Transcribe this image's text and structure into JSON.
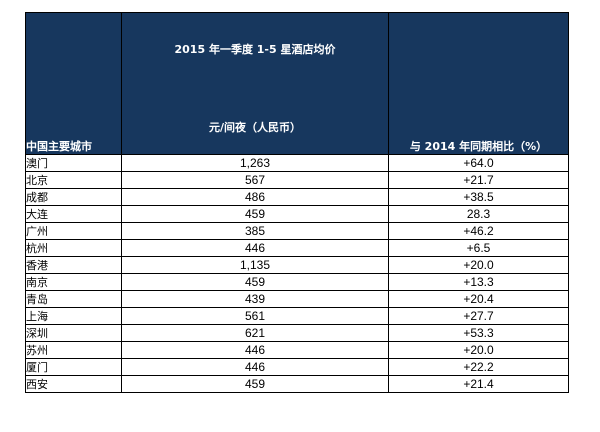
{
  "table": {
    "header": {
      "city": "中国主要城市",
      "title": "2015 年一季度 1-5 星酒店均价",
      "unit": "元/间夜（人民币）",
      "change": "与 2014 年同期相比（%）"
    },
    "rows": [
      {
        "city": "澳门",
        "price": "1,263",
        "change": "+64.0"
      },
      {
        "city": "北京",
        "price": "567",
        "change": "+21.7"
      },
      {
        "city": "成都",
        "price": "486",
        "change": "+38.5"
      },
      {
        "city": "大连",
        "price": "459",
        "change": "28.3"
      },
      {
        "city": "广州",
        "price": "385",
        "change": "+46.2"
      },
      {
        "city": "杭州",
        "price": "446",
        "change": "+6.5"
      },
      {
        "city": "香港",
        "price": "1,135",
        "change": "+20.0"
      },
      {
        "city": "南京",
        "price": "459",
        "change": "+13.3"
      },
      {
        "city": "青岛",
        "price": "439",
        "change": "+20.4"
      },
      {
        "city": "上海",
        "price": "561",
        "change": "+27.7"
      },
      {
        "city": "深圳",
        "price": "621",
        "change": "+53.3"
      },
      {
        "city": "苏州",
        "price": "446",
        "change": "+20.0"
      },
      {
        "city": "厦门",
        "price": "446",
        "change": "+22.2"
      },
      {
        "city": "西安",
        "price": "459",
        "change": "+21.4"
      }
    ]
  },
  "colors": {
    "header_bg": "#17375e",
    "header_text": "#ffffff"
  }
}
